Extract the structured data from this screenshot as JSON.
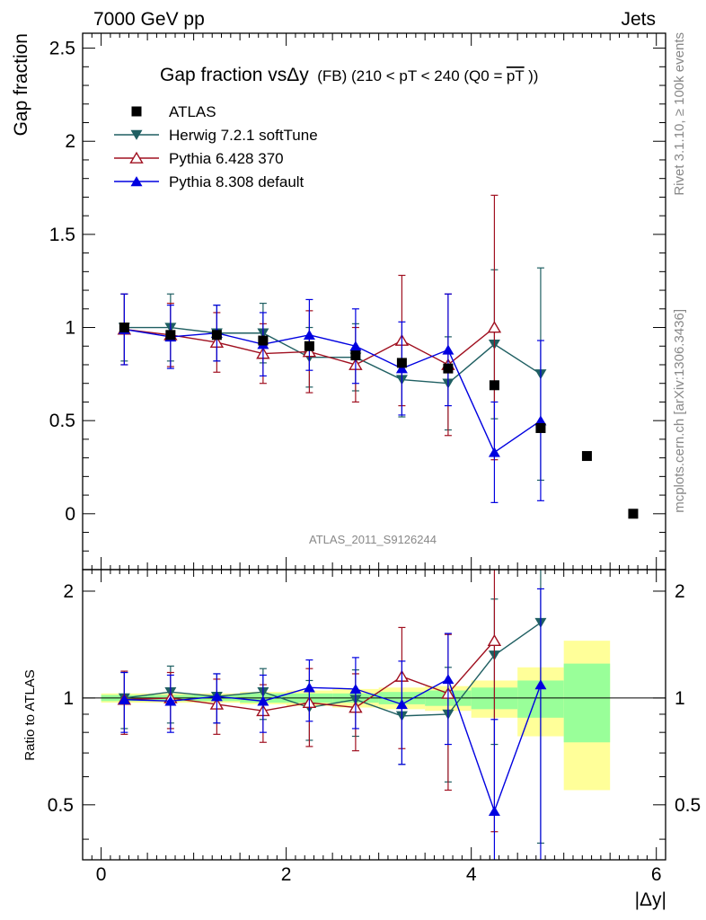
{
  "header": {
    "left": "7000 GeV pp",
    "right": "Jets"
  },
  "side_labels": {
    "rivet": "Rivet 3.1.10, ≥ 100k events",
    "mcplots": "mcplots.cern.ch [arXiv:1306.3436]"
  },
  "watermark": "ATLAS_2011_S9126244",
  "chart_data": {
    "type": "scatter",
    "title_main": "Gap fraction vsΔy",
    "title_small": "(FB) (210 < pT < 240 (Q0 =",
    "title_over": "pT",
    "title_close": "))",
    "ylabel": "Gap fraction",
    "xlabel": "|Δy|",
    "ratio_ylabel": "Ratio to ATLAS",
    "xlim": [
      -0.2,
      6.1
    ],
    "ylim": [
      -0.3,
      2.58
    ],
    "ratio_ylim": [
      0.35,
      2.3
    ],
    "x_ticks": [
      "0",
      "2",
      "4",
      "6"
    ],
    "y_ticks": [
      "0",
      "0.5",
      "1",
      "1.5",
      "2",
      "2.5"
    ],
    "ratio_ticks": [
      "0.5",
      "1",
      "2"
    ],
    "legend": [
      {
        "name": "ATLAS",
        "color": "#000000",
        "marker": "square"
      },
      {
        "name": "Herwig 7.2.1 softTune",
        "color": "#1f5f62",
        "marker": "triangle-down"
      },
      {
        "name": "Pythia 6.428 370",
        "color": "#a01020",
        "marker": "triangle-open"
      },
      {
        "name": "Pythia 8.308 default",
        "color": "#0000e0",
        "marker": "triangle-up"
      }
    ],
    "data": {
      "x": [
        0.25,
        0.75,
        1.25,
        1.75,
        2.25,
        2.75,
        3.25,
        3.75,
        4.25,
        4.75,
        5.25,
        5.75
      ],
      "y": [
        1.0,
        0.96,
        0.96,
        0.93,
        0.9,
        0.85,
        0.81,
        0.78,
        0.69,
        0.46,
        0.31,
        0.0
      ],
      "band_inner": [
        0.02,
        0.02,
        0.02,
        0.03,
        0.03,
        0.03,
        0.04,
        0.05,
        0.07,
        0.12,
        0.25,
        0.3
      ],
      "band_outer": [
        0.03,
        0.03,
        0.03,
        0.04,
        0.05,
        0.06,
        0.07,
        0.08,
        0.12,
        0.22,
        0.45,
        0.5
      ]
    },
    "series": [
      {
        "name": "Herwig 7.2.1 softTune",
        "color": "#1f5f62",
        "marker": "triangle-down",
        "x": [
          0.25,
          0.75,
          1.25,
          1.75,
          2.25,
          2.75,
          3.25,
          3.75,
          4.25,
          4.75
        ],
        "y": [
          1.0,
          1.0,
          0.97,
          0.97,
          0.84,
          0.84,
          0.72,
          0.7,
          0.91,
          0.75
        ],
        "err": [
          0.18,
          0.18,
          0.15,
          0.16,
          0.16,
          0.18,
          0.2,
          0.25,
          0.4,
          0.57
        ],
        "ratio": [
          1.0,
          1.04,
          1.01,
          1.04,
          0.94,
          0.99,
          0.89,
          0.9,
          1.32,
          1.63
        ],
        "ratio_err": [
          0.18,
          0.19,
          0.16,
          0.17,
          0.18,
          0.21,
          0.24,
          0.32,
          0.58,
          1.24
        ]
      },
      {
        "name": "Pythia 6.428 370",
        "color": "#a01020",
        "marker": "triangle-open",
        "x": [
          0.25,
          0.75,
          1.25,
          1.75,
          2.25,
          2.75,
          3.25,
          3.75,
          4.25
        ],
        "y": [
          0.99,
          0.96,
          0.92,
          0.86,
          0.87,
          0.8,
          0.93,
          0.8,
          1.0
        ],
        "err": [
          0.19,
          0.17,
          0.16,
          0.16,
          0.22,
          0.2,
          0.35,
          0.38,
          0.71
        ],
        "ratio": [
          0.99,
          1.0,
          0.96,
          0.92,
          0.97,
          0.94,
          1.15,
          1.03,
          1.45
        ],
        "ratio_err": [
          0.2,
          0.18,
          0.17,
          0.17,
          0.24,
          0.23,
          0.43,
          0.48,
          1.03
        ]
      },
      {
        "name": "Pythia 8.308 default",
        "color": "#0000e0",
        "marker": "triangle-up",
        "x": [
          0.25,
          0.75,
          1.25,
          1.75,
          2.25,
          2.75,
          3.25,
          3.75,
          4.25,
          4.75
        ],
        "y": [
          0.99,
          0.95,
          0.97,
          0.91,
          0.96,
          0.9,
          0.78,
          0.88,
          0.33,
          0.5
        ],
        "err": [
          0.19,
          0.17,
          0.15,
          0.17,
          0.19,
          0.2,
          0.25,
          0.3,
          0.27,
          0.43
        ],
        "ratio": [
          0.99,
          0.98,
          1.01,
          0.98,
          1.07,
          1.06,
          0.96,
          1.13,
          0.48,
          1.09
        ],
        "ratio_err": [
          0.19,
          0.18,
          0.16,
          0.18,
          0.21,
          0.24,
          0.31,
          0.39,
          0.39,
          0.94
        ]
      }
    ]
  }
}
